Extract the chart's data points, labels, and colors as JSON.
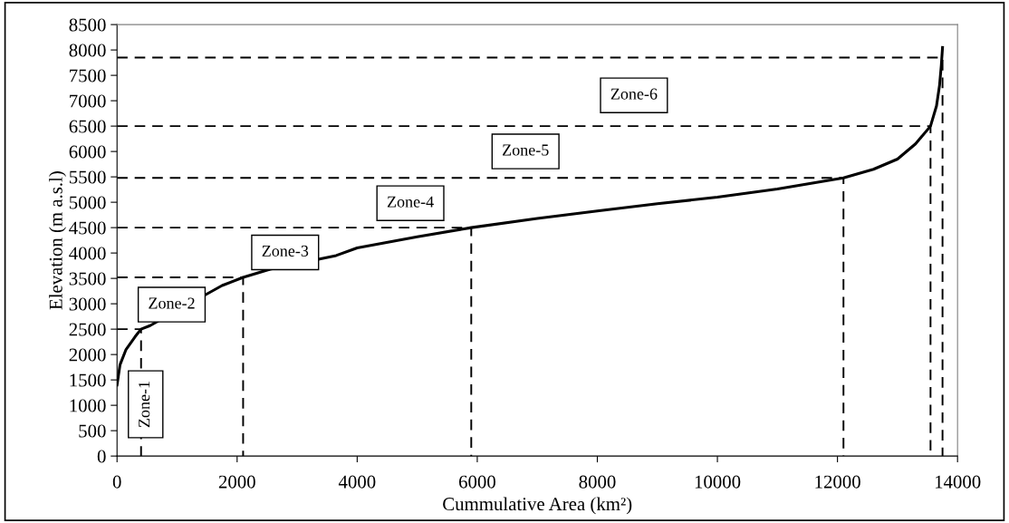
{
  "chart_data": {
    "type": "line",
    "xlabel": "Cummulative Area (km²)",
    "ylabel": "Elevation (m a.s.l)",
    "xlim": [
      0,
      14000
    ],
    "xticks": [
      0,
      2000,
      4000,
      6000,
      8000,
      10000,
      12000,
      14000
    ],
    "ylim": [
      0,
      8500
    ],
    "yticks": [
      0,
      500,
      1000,
      1500,
      2000,
      2500,
      3000,
      3500,
      4000,
      4500,
      5000,
      5500,
      6000,
      6500,
      7000,
      7500,
      8000,
      8500
    ],
    "grid": false,
    "legend": false,
    "marker": "none",
    "series": [
      {
        "color": "#000000",
        "line_style": "solid",
        "x": [
          0,
          50,
          150,
          300,
          400,
          550,
          1750,
          2100,
          2550,
          3650,
          4000,
          5000,
          5900,
          7000,
          8000,
          9000,
          10000,
          11000,
          12100,
          12600,
          13000,
          13300,
          13550,
          13650,
          13700,
          13730,
          13750
        ],
        "values": [
          1400,
          1800,
          2100,
          2350,
          2500,
          2570,
          3360,
          3520,
          3680,
          3950,
          4100,
          4320,
          4500,
          4680,
          4830,
          4970,
          5100,
          5260,
          5480,
          5650,
          5850,
          6150,
          6500,
          6900,
          7300,
          7700,
          8050
        ]
      },
      {
        "color": "#000000",
        "line_style": "dashed",
        "x": [
          0,
          400,
          400
        ],
        "values": [
          2500,
          2500,
          0
        ]
      },
      {
        "color": "#000000",
        "line_style": "dashed",
        "x": [
          0,
          2100,
          2100
        ],
        "values": [
          3520,
          3520,
          0
        ]
      },
      {
        "color": "#000000",
        "line_style": "dashed",
        "x": [
          0,
          5900,
          5900
        ],
        "values": [
          4500,
          4500,
          0
        ]
      },
      {
        "color": "#000000",
        "line_style": "dashed",
        "x": [
          0,
          12100,
          12100
        ],
        "values": [
          5480,
          5480,
          0
        ]
      },
      {
        "color": "#000000",
        "line_style": "dashed",
        "x": [
          0,
          13550,
          13550
        ],
        "values": [
          6500,
          6500,
          0
        ]
      },
      {
        "color": "#000000",
        "line_style": "dashed",
        "x": [
          0,
          13750,
          13750
        ],
        "values": [
          7850,
          7850,
          0
        ]
      }
    ],
    "annotations": [
      "Zone-1",
      "Zone-2",
      "Zone-3",
      "Zone-4",
      "Zone-5",
      "Zone-6"
    ]
  }
}
